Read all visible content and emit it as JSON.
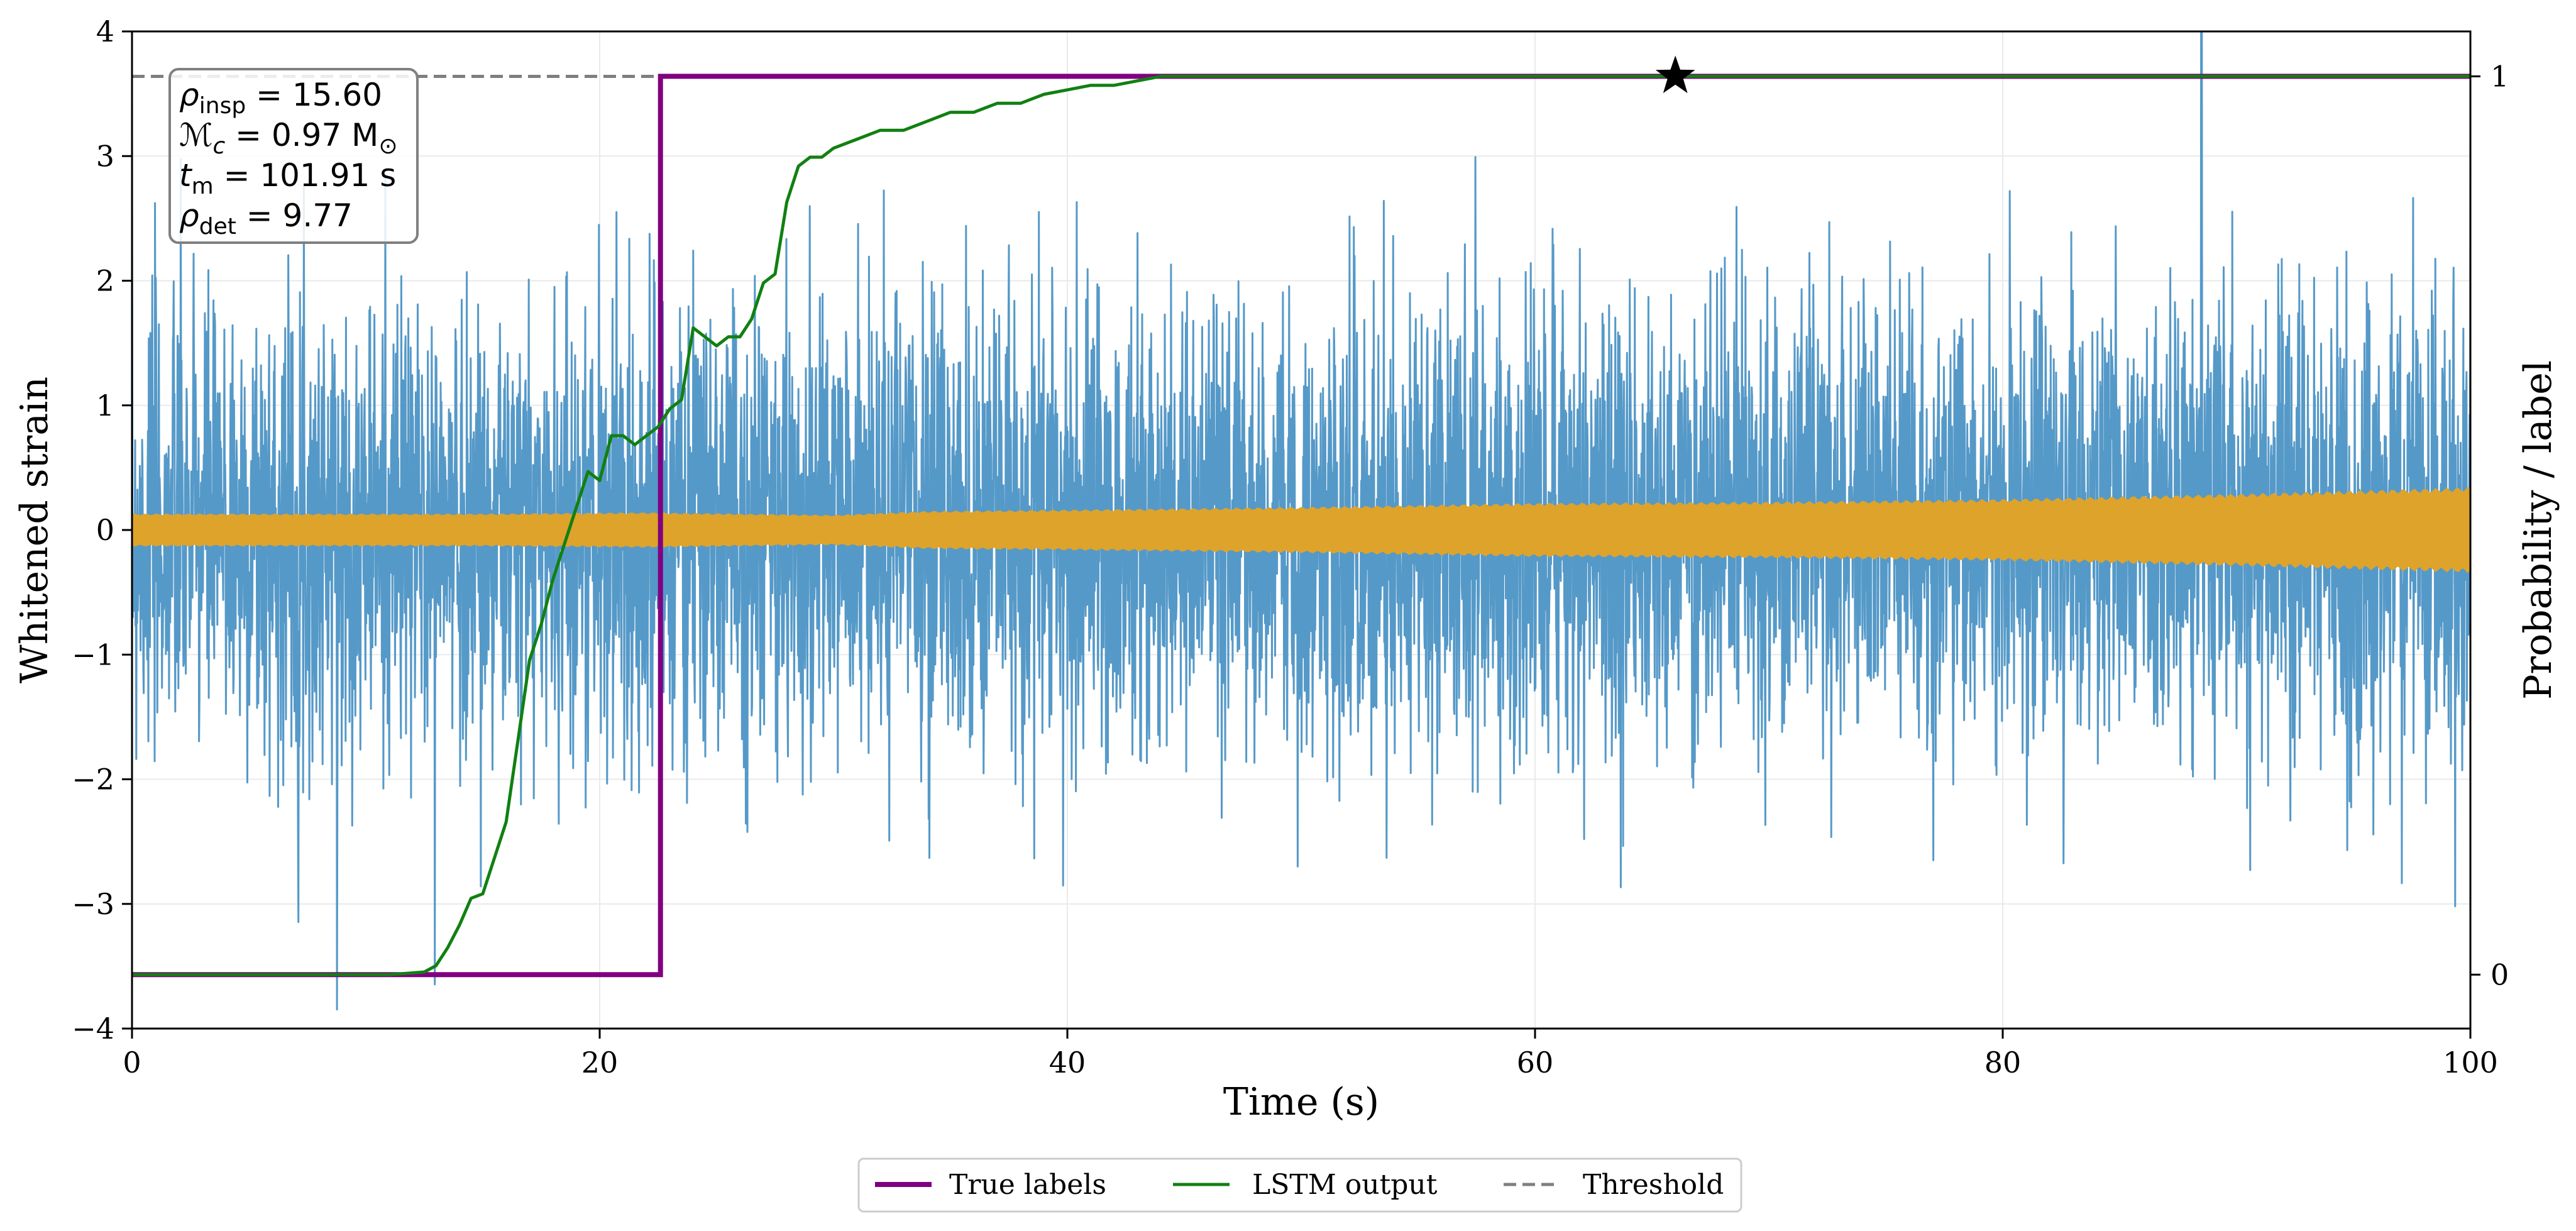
{
  "chart_data": {
    "type": "line",
    "xlabel": "Time (s)",
    "ylabel_left": "Whitened strain",
    "ylabel_right": "Probability / label",
    "xlim": [
      0,
      100
    ],
    "ylim_left": [
      -4,
      4
    ],
    "ylim_right": [
      -0.06,
      1.05
    ],
    "x_ticks": [
      "0",
      "20",
      "40",
      "60",
      "80",
      "100"
    ],
    "y_ticks_left": [
      "4",
      "3",
      "2",
      "1",
      "0",
      "−1",
      "−2",
      "−3",
      "−4"
    ],
    "y_ticks_right": [
      "1",
      "0"
    ],
    "grid": true,
    "legend_position": "bottom-center",
    "colors": {
      "strain": "#5599c8",
      "signal": "#dea32b",
      "true_labels": "#800080",
      "lstm_output": "#118011",
      "threshold": "#7f7f7f",
      "marker": "#000000"
    },
    "series": [
      {
        "name": "True labels",
        "axis": "right",
        "style": "step",
        "x": [
          0,
          22.6,
          22.6,
          100
        ],
        "y": [
          0,
          0,
          1,
          1
        ]
      },
      {
        "name": "LSTM output",
        "axis": "right",
        "style": "line",
        "x": [
          0,
          11,
          12.5,
          13,
          13.5,
          14,
          14.5,
          15,
          15.5,
          16,
          16.5,
          17,
          17.5,
          18,
          18.5,
          19,
          19.5,
          20,
          20.5,
          21,
          21.5,
          22,
          22.5,
          23,
          23.5,
          24,
          24.5,
          25,
          25.5,
          26,
          26.5,
          27,
          27.5,
          28,
          28.5,
          29,
          29.5,
          30,
          31,
          32,
          33,
          34,
          35,
          36,
          37,
          38,
          39,
          40,
          41,
          42,
          43,
          44,
          46,
          50,
          60,
          100
        ],
        "y": [
          0,
          0,
          0.003,
          0.01,
          0.03,
          0.055,
          0.085,
          0.09,
          0.13,
          0.17,
          0.26,
          0.35,
          0.39,
          0.44,
          0.48,
          0.52,
          0.56,
          0.55,
          0.6,
          0.6,
          0.59,
          0.6,
          0.61,
          0.63,
          0.64,
          0.72,
          0.71,
          0.7,
          0.71,
          0.71,
          0.73,
          0.77,
          0.78,
          0.86,
          0.9,
          0.91,
          0.91,
          0.92,
          0.93,
          0.94,
          0.94,
          0.95,
          0.96,
          0.96,
          0.97,
          0.97,
          0.98,
          0.985,
          0.99,
          0.99,
          0.995,
          1.0,
          1.0,
          1.0,
          1.0,
          1.0
        ]
      },
      {
        "name": "Threshold",
        "axis": "right",
        "style": "dashed",
        "y": 1.0
      },
      {
        "name": "",
        "axis": "left",
        "style": "strain",
        "x": [
          0,
          100
        ],
        "rms": 0.9,
        "peak": 4.0,
        "peak_x": 88.5
      },
      {
        "name": "",
        "axis": "left",
        "style": "signal",
        "x": [
          0,
          15,
          22,
          30,
          34,
          40,
          50,
          60,
          70,
          80,
          90,
          100
        ],
        "amplitude": [
          0.12,
          0.12,
          0.13,
          0.11,
          0.14,
          0.15,
          0.17,
          0.2,
          0.21,
          0.23,
          0.27,
          0.32
        ]
      }
    ],
    "marker": {
      "symbol": "star",
      "x": 66,
      "y": 1.0
    },
    "info_box": {
      "rho_insp_label": "ρ",
      "rho_insp_sub": "insp",
      "rho_insp_value": " = 15.60",
      "chirp_mass_label": "ℳ",
      "chirp_mass_sub": "c",
      "chirp_mass_value": " = 0.97 M",
      "chirp_mass_unit_sub": "⊙",
      "tm_label": "t",
      "tm_sub": "m",
      "tm_value": " = 101.91 s",
      "rho_det_label": "ρ",
      "rho_det_sub": "det",
      "rho_det_value": " = 9.77"
    }
  },
  "legend": {
    "true_labels": "True labels",
    "lstm_output": "LSTM output",
    "threshold": "Threshold"
  }
}
